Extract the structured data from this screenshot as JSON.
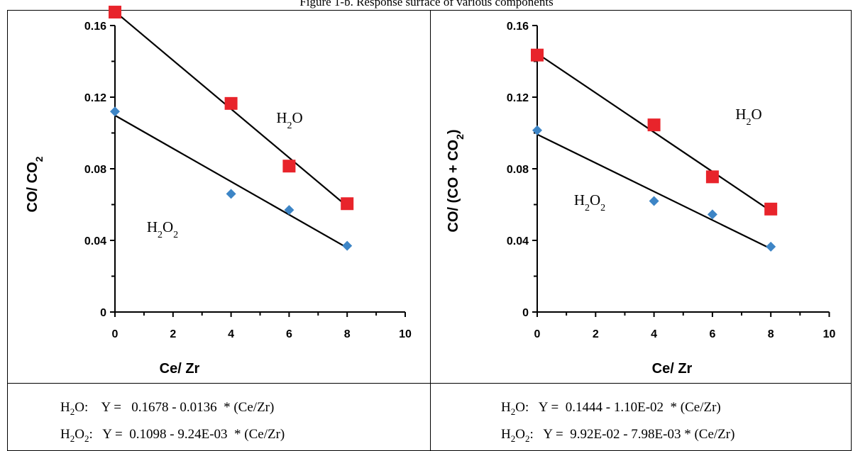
{
  "caption": "Figure 1-b. Response surface of various components",
  "chart_data": [
    {
      "type": "scatter",
      "title": "",
      "xlabel": "Ce/ Zr",
      "ylabel": "CO/ CO2",
      "xlim": [
        0,
        10
      ],
      "ylim": [
        0,
        0.16
      ],
      "xticks": [
        0,
        2,
        4,
        6,
        8,
        10
      ],
      "yticks": [
        0,
        0.04,
        0.08,
        0.12,
        0.16
      ],
      "ytick_labels": [
        "0",
        "0.04",
        "0.08",
        "0.12",
        "0.16"
      ],
      "grid": false,
      "series": [
        {
          "name": "H2O",
          "marker": "square",
          "color": "#e8242b",
          "x": [
            0,
            4,
            6,
            8
          ],
          "y": [
            0.1675,
            0.1165,
            0.0815,
            0.0605
          ],
          "fit": {
            "intercept": 0.1678,
            "slope": -0.0136
          }
        },
        {
          "name": "H2O2",
          "marker": "diamond",
          "color": "#3d85c6",
          "x": [
            0,
            4,
            6,
            8
          ],
          "y": [
            0.112,
            0.066,
            0.057,
            0.037
          ],
          "fit": {
            "intercept": 0.1098,
            "slope": -0.00924
          }
        }
      ]
    },
    {
      "type": "scatter",
      "title": "",
      "xlabel": "Ce/ Zr",
      "ylabel": "CO/ (CO + CO2)",
      "xlim": [
        0,
        10
      ],
      "ylim": [
        0,
        0.16
      ],
      "xticks": [
        0,
        2,
        4,
        6,
        8,
        10
      ],
      "yticks": [
        0,
        0.04,
        0.08,
        0.12,
        0.16
      ],
      "ytick_labels": [
        "0",
        "0.04",
        "0.08",
        "0.12",
        "0.16"
      ],
      "grid": false,
      "series": [
        {
          "name": "H2O",
          "marker": "square",
          "color": "#e8242b",
          "x": [
            0,
            4,
            6,
            8
          ],
          "y": [
            0.1435,
            0.1045,
            0.0755,
            0.0575
          ],
          "fit": {
            "intercept": 0.1444,
            "slope": -0.011
          }
        },
        {
          "name": "H2O2",
          "marker": "diamond",
          "color": "#3d85c6",
          "x": [
            0,
            4,
            6,
            8
          ],
          "y": [
            0.1015,
            0.062,
            0.0545,
            0.0365
          ],
          "fit": {
            "intercept": 0.0992,
            "slope": -0.00798
          }
        }
      ]
    }
  ],
  "equations": {
    "left": [
      {
        "species": "H2O",
        "text": ":    Y =   0.1678 - 0.0136  * (Ce/Zr)"
      },
      {
        "species": "H2O2",
        "text": ":   Y =  0.1098 - 9.24E-03  * (Ce/Zr)"
      }
    ],
    "right": [
      {
        "species": "H2O",
        "text": ":   Y =  0.1444 - 1.10E-02  * (Ce/Zr)"
      },
      {
        "species": "H2O2",
        "text": ":   Y =  9.92E-02 - 7.98E-03 * (Ce/Zr)"
      }
    ]
  }
}
